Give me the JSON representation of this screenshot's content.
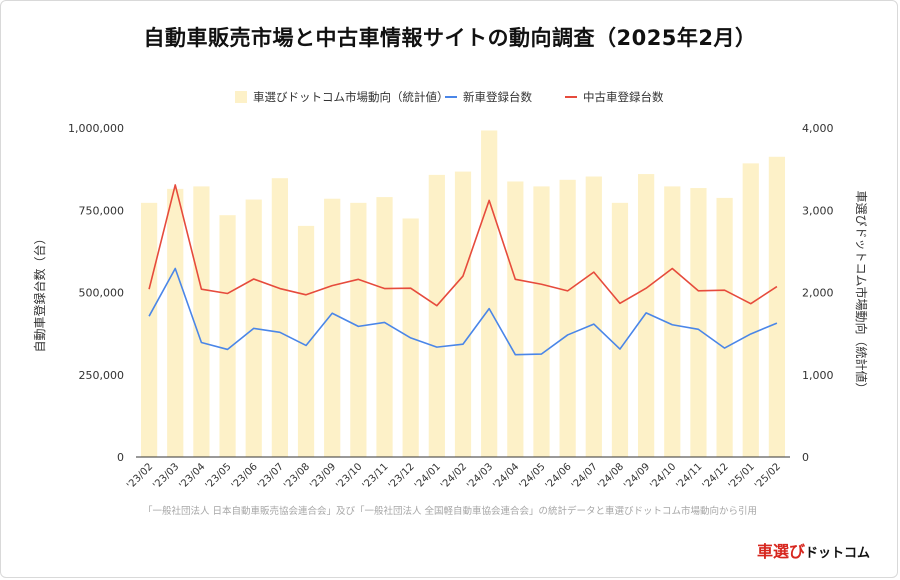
{
  "title": "自動車販売市場と中古車情報サイトの動向調査（2025年2月）",
  "source_note": "「一般社団法人 日本自動車販売協会連合会」及び「一般社団法人 全国軽自動車協会連合会」の統計データと車選びドットコム市場動向から引用",
  "logo": {
    "main": "車選び",
    "sub": "ドットコム"
  },
  "colors": {
    "bar": "#fdf1c8",
    "new": "#4a86e8",
    "used": "#e64b3c",
    "axis": "#333333",
    "grid": "#e0e0e0"
  },
  "chart_data": {
    "type": "bar+line",
    "categories": [
      "'23/02",
      "'23/03",
      "'23/04",
      "'23/05",
      "'23/06",
      "'23/07",
      "'23/08",
      "'23/09",
      "'23/10",
      "'23/11",
      "'23/12",
      "'24/01",
      "'24/02",
      "'24/03",
      "'24/04",
      "'24/05",
      "'24/06",
      "'24/07",
      "'24/08",
      "'24/09",
      "'24/10",
      "'24/11",
      "'24/12",
      "'25/01",
      "'25/02"
    ],
    "ylabel_left": "自動車登録台数（台）",
    "ylabel_right": "車選びドットコム市場動向（統計値）",
    "ylim_left": [
      0,
      1000000
    ],
    "ylim_right": [
      0,
      4000
    ],
    "yticks_left": [
      "0",
      "250,000",
      "500,000",
      "750,000",
      "1,000,000"
    ],
    "yticks_right": [
      "0",
      "1,000",
      "2,000",
      "3,000",
      "4,000"
    ],
    "legend_position": "top-center",
    "grid": false,
    "series": [
      {
        "name": "車選びドットコム市場動向（統計値）",
        "kind": "bar",
        "axis": "right",
        "values": [
          3090,
          3260,
          3290,
          2940,
          3130,
          3390,
          2810,
          3140,
          3090,
          3160,
          2900,
          3430,
          3470,
          3970,
          3350,
          3290,
          3370,
          3410,
          3090,
          3440,
          3290,
          3270,
          3150,
          3570,
          3650
        ]
      },
      {
        "name": "新車登録台数",
        "kind": "line",
        "axis": "left",
        "values": [
          428000,
          573000,
          348000,
          327000,
          391000,
          379000,
          339000,
          437000,
          397000,
          409000,
          362000,
          334000,
          343000,
          451000,
          311000,
          313000,
          371000,
          404000,
          328000,
          438000,
          402000,
          388000,
          331000,
          374000,
          407000
        ]
      },
      {
        "name": "中古車登録台数",
        "kind": "line",
        "axis": "left",
        "values": [
          510000,
          827000,
          510000,
          497000,
          541000,
          512000,
          493000,
          521000,
          540000,
          512000,
          513000,
          460000,
          550000,
          780000,
          540000,
          525000,
          505000,
          562000,
          467000,
          513000,
          573000,
          505000,
          507000,
          466000,
          518000
        ]
      }
    ]
  }
}
